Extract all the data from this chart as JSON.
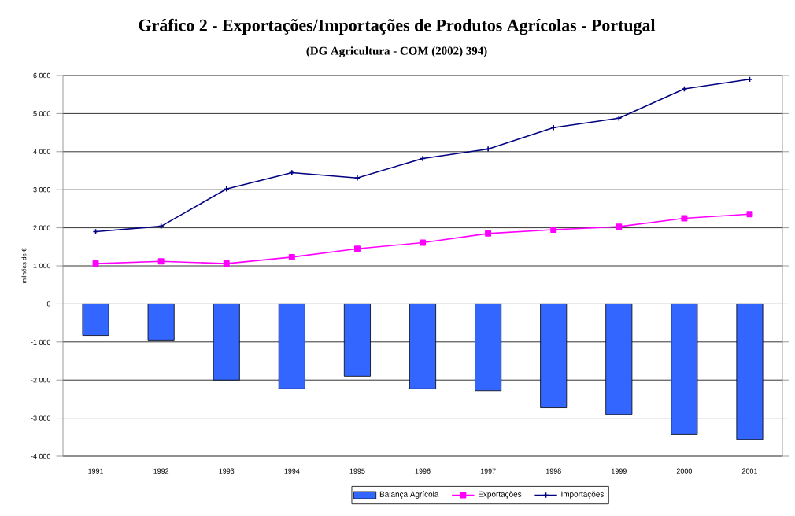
{
  "chart_data": {
    "type": "bar",
    "title": "Gráfico 2 - Exportações/Importações de Produtos Agrícolas - Portugal",
    "subtitle": "(DG Agricultura - COM (2002) 394)",
    "ylabel": "milhões de €",
    "categories": [
      "1991",
      "1992",
      "1993",
      "1994",
      "1995",
      "1996",
      "1997",
      "1998",
      "1999",
      "2000",
      "2001"
    ],
    "series": [
      {
        "name": "Balança Agrícola",
        "color": "#3366ff",
        "values": [
          -830,
          -950,
          -2000,
          -2230,
          -1900,
          -2230,
          -2280,
          -2730,
          -2900,
          -3430,
          -3560
        ]
      },
      {
        "name": "Exportações",
        "type": "line",
        "color": "#ff00ff",
        "marker": "square",
        "values": [
          1060,
          1120,
          1060,
          1230,
          1450,
          1610,
          1850,
          1950,
          2030,
          2250,
          2360
        ]
      },
      {
        "name": "Importações",
        "type": "line",
        "color": "#000080",
        "marker": "cross",
        "values": [
          1900,
          2040,
          3020,
          3450,
          3310,
          3820,
          4070,
          4630,
          4880,
          5650,
          5900
        ]
      }
    ],
    "ylim": [
      -4000,
      6000
    ],
    "yticks": [
      {
        "value": -4000,
        "label": "-4 000"
      },
      {
        "value": -3000,
        "label": "-3 000"
      },
      {
        "value": -2000,
        "label": "-2 000"
      },
      {
        "value": -1000,
        "label": "-1 000"
      },
      0,
      {
        "value": 1000,
        "label": "1 000"
      },
      {
        "value": 2000,
        "label": "2 000"
      },
      {
        "value": 3000,
        "label": "3 000"
      },
      {
        "value": 4000,
        "label": "4 000"
      },
      {
        "value": 5000,
        "label": "5 000"
      },
      {
        "value": 6000,
        "label": "6 000"
      }
    ],
    "grid": "y",
    "legend": "bottom"
  }
}
